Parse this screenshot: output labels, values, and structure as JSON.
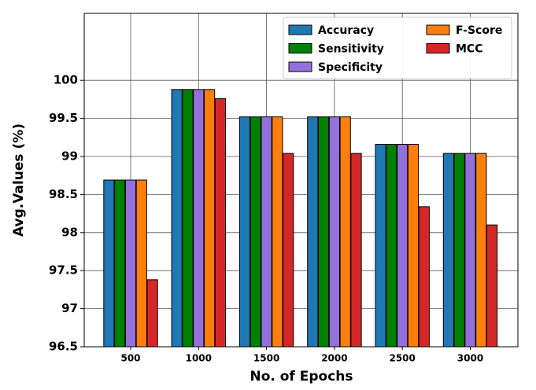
{
  "chart_data": {
    "type": "bar",
    "xlabel": "No. of Epochs",
    "ylabel": "Avg.Values (%)",
    "categories": [
      "500",
      "1000",
      "1500",
      "2000",
      "2500",
      "3000"
    ],
    "series": [
      {
        "name": "Accuracy",
        "color": "#1f77b4",
        "values": [
          98.69,
          99.88,
          99.52,
          99.52,
          99.16,
          99.04
        ]
      },
      {
        "name": "Sensitivity",
        "color": "#008000",
        "values": [
          98.69,
          99.88,
          99.52,
          99.52,
          99.16,
          99.04
        ]
      },
      {
        "name": "Specificity",
        "color": "#9370db",
        "values": [
          98.69,
          99.88,
          99.52,
          99.52,
          99.16,
          99.04
        ]
      },
      {
        "name": "F-Score",
        "color": "#ff7f0e",
        "values": [
          98.69,
          99.88,
          99.52,
          99.52,
          99.16,
          99.04
        ]
      },
      {
        "name": "MCC",
        "color": "#d62728",
        "values": [
          97.38,
          99.76,
          99.04,
          99.04,
          98.34,
          98.1
        ]
      }
    ],
    "ylim": [
      96.5,
      100.88
    ],
    "yticks": [
      96.5,
      97.0,
      97.5,
      98.0,
      98.5,
      99.0,
      99.5,
      100.0
    ],
    "grid": true,
    "legend": "upper right"
  }
}
